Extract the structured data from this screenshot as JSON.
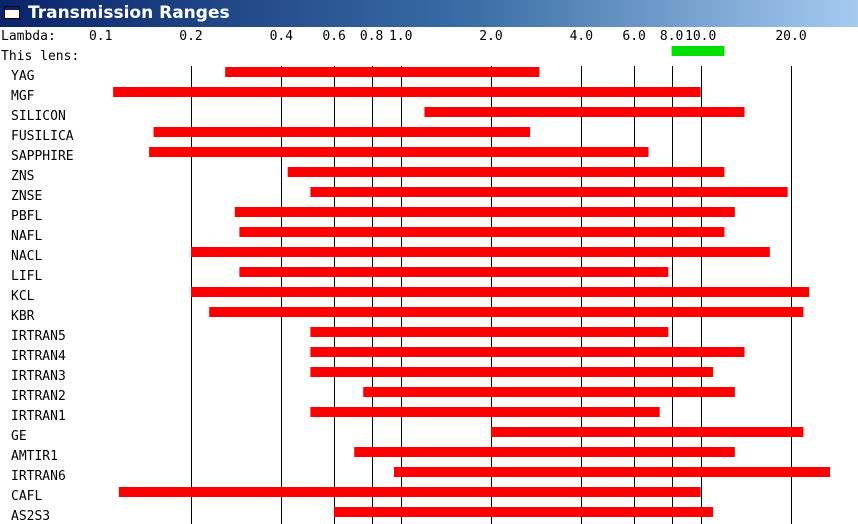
{
  "window": {
    "title": "Transmission Ranges"
  },
  "labels": {
    "lambda": "Lambda:",
    "this_lens": "This lens:"
  },
  "colors": {
    "bar": "#ff0000",
    "lens_bar": "#00e000",
    "gridline": "#000000",
    "titlebar": "#0a246a"
  },
  "chart_data": {
    "type": "bar",
    "orientation": "horizontal-range",
    "x_scale": "log",
    "xlabel": "Lambda:",
    "xlim": [
      0.09,
      28
    ],
    "ticks": [
      {
        "value": 0.1,
        "label": "0.1"
      },
      {
        "value": 0.2,
        "label": "0.2"
      },
      {
        "value": 0.4,
        "label": "0.4"
      },
      {
        "value": 0.6,
        "label": "0.6"
      },
      {
        "value": 0.8,
        "label": "0.8"
      },
      {
        "value": 1.0,
        "label": "1.0"
      },
      {
        "value": 2.0,
        "label": "2.0"
      },
      {
        "value": 4.0,
        "label": "4.0"
      },
      {
        "value": 6.0,
        "label": "6.0"
      },
      {
        "value": 8.0,
        "label": "8.0"
      },
      {
        "value": 10.0,
        "label": "10.0"
      },
      {
        "value": 20.0,
        "label": "20.0"
      }
    ],
    "gridlines": [
      0.2,
      0.4,
      0.6,
      0.8,
      1.0,
      2.0,
      4.0,
      6.0,
      8.0,
      10.0,
      20.0
    ],
    "lens": {
      "label": "This lens:",
      "start": 8.0,
      "end": 12.0
    },
    "materials": [
      {
        "name": "YAG",
        "start": 0.26,
        "end": 2.9
      },
      {
        "name": "MGF",
        "start": 0.11,
        "end": 10.0
      },
      {
        "name": "SILICON",
        "start": 1.2,
        "end": 14.0
      },
      {
        "name": "FUSILICA",
        "start": 0.15,
        "end": 2.7
      },
      {
        "name": "SAPPHIRE",
        "start": 0.145,
        "end": 6.7
      },
      {
        "name": "ZNS",
        "start": 0.42,
        "end": 12.0
      },
      {
        "name": "ZNSE",
        "start": 0.5,
        "end": 19.5
      },
      {
        "name": "PBFL",
        "start": 0.28,
        "end": 13.0
      },
      {
        "name": "NAFL",
        "start": 0.29,
        "end": 12.0
      },
      {
        "name": "NACL",
        "start": 0.2,
        "end": 17.0
      },
      {
        "name": "LIFL",
        "start": 0.29,
        "end": 7.8
      },
      {
        "name": "KCL",
        "start": 0.2,
        "end": 23.0
      },
      {
        "name": "KBR",
        "start": 0.23,
        "end": 22.0
      },
      {
        "name": "IRTRAN5",
        "start": 0.5,
        "end": 7.8
      },
      {
        "name": "IRTRAN4",
        "start": 0.5,
        "end": 14.0
      },
      {
        "name": "IRTRAN3",
        "start": 0.5,
        "end": 11.0
      },
      {
        "name": "IRTRAN2",
        "start": 0.75,
        "end": 13.0
      },
      {
        "name": "IRTRAN1",
        "start": 0.5,
        "end": 7.3
      },
      {
        "name": "GE",
        "start": 2.0,
        "end": 22.0
      },
      {
        "name": "AMTIR1",
        "start": 0.7,
        "end": 13.0
      },
      {
        "name": "IRTRAN6",
        "start": 0.95,
        "end": 27.0
      },
      {
        "name": "CAFL",
        "start": 0.115,
        "end": 10.0
      },
      {
        "name": "AS2S3",
        "start": 0.6,
        "end": 11.0
      }
    ]
  }
}
